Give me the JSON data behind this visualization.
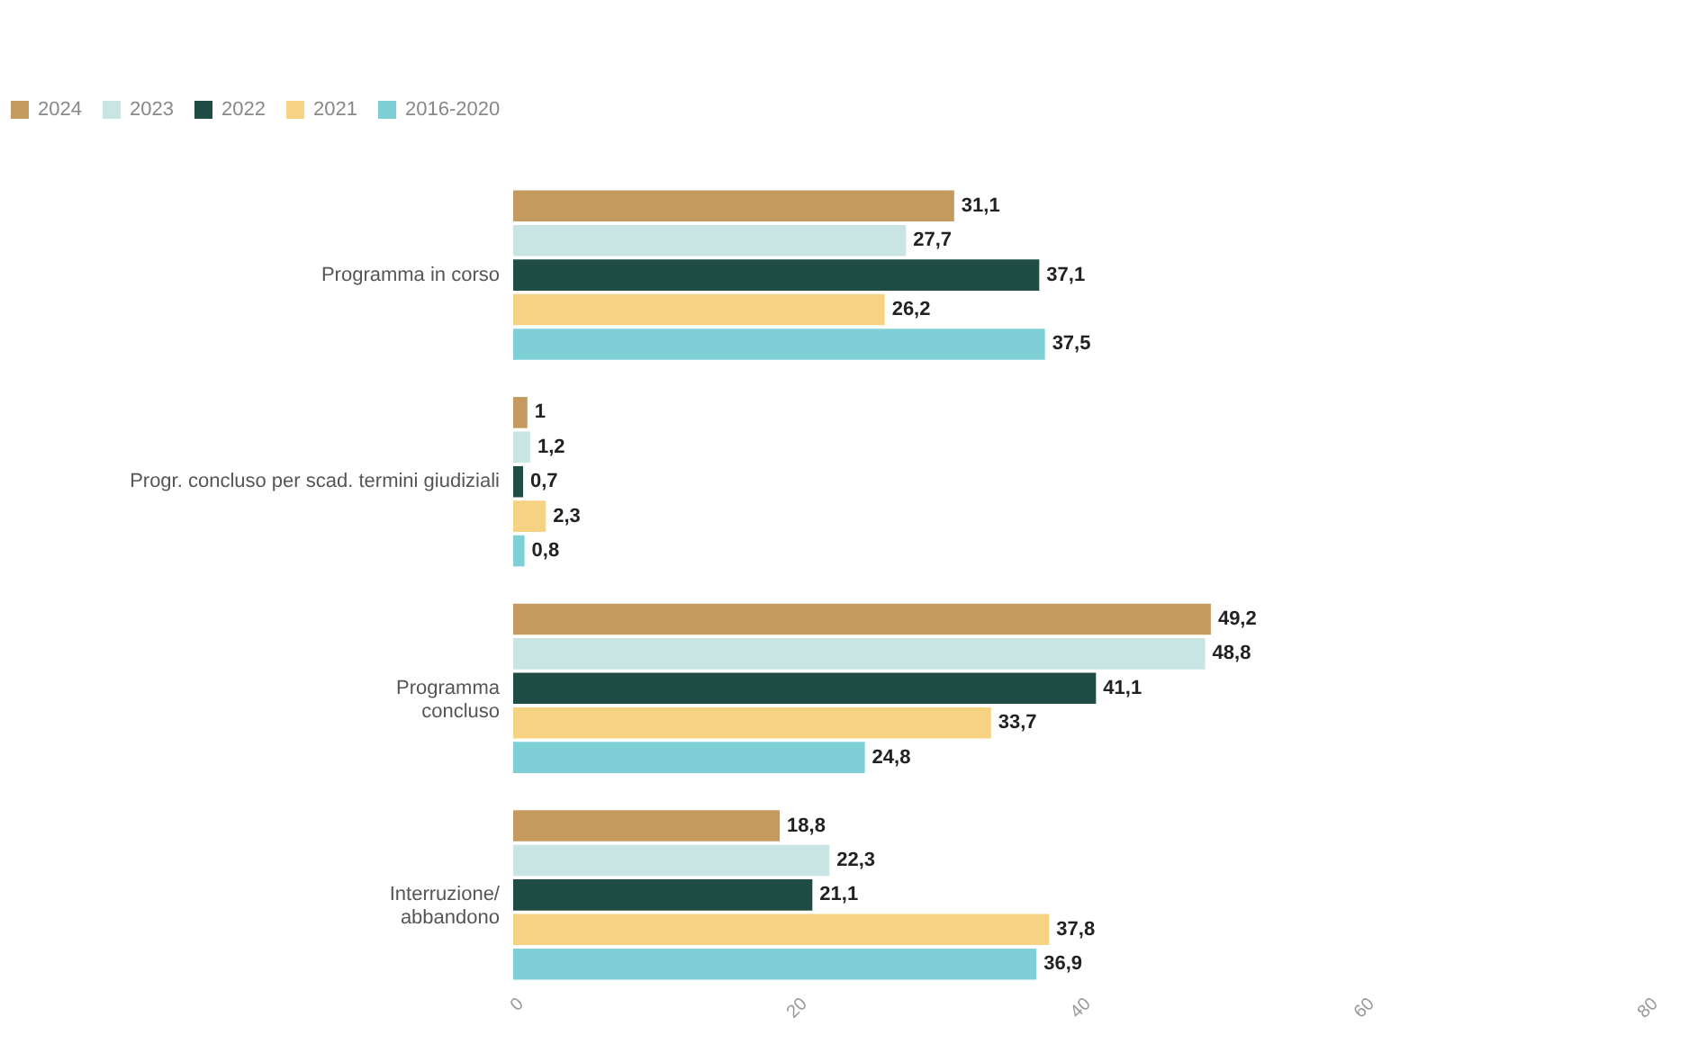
{
  "chart_data": {
    "type": "bar",
    "orientation": "horizontal",
    "categories": [
      "Programma in corso",
      "Progr. concluso per scad. termini giudiziali",
      "Programma\nconcluso",
      "Interruzione/\nabbandono"
    ],
    "series": [
      {
        "name": "2024",
        "color": "#c49a5e",
        "values": [
          31.1,
          1,
          49.2,
          18.8
        ],
        "value_labels": [
          "31,1",
          "1",
          "49,2",
          "18,8"
        ]
      },
      {
        "name": "2023",
        "color": "#c8e4e3",
        "values": [
          27.7,
          1.2,
          48.8,
          22.3
        ],
        "value_labels": [
          "27,7",
          "1,2",
          "48,8",
          "22,3"
        ]
      },
      {
        "name": "2022",
        "color": "#1f4d45",
        "values": [
          37.1,
          0.7,
          41.1,
          21.1
        ],
        "value_labels": [
          "37,1",
          "0,7",
          "41,1",
          "21,1"
        ]
      },
      {
        "name": "2021",
        "color": "#f5d382",
        "values": [
          26.2,
          2.3,
          33.7,
          37.8
        ],
        "value_labels": [
          "26,2",
          "2,3",
          "33,7",
          "37,8"
        ]
      },
      {
        "name": "2016-2020",
        "color": "#7fcfd6",
        "values": [
          37.5,
          0.8,
          24.8,
          36.9
        ],
        "value_labels": [
          "37,5",
          "0,8",
          "24,8",
          "36,9"
        ]
      }
    ],
    "xlim": [
      0,
      80
    ],
    "xticks": [
      0,
      20,
      40,
      60,
      80
    ],
    "legend": "top left"
  }
}
